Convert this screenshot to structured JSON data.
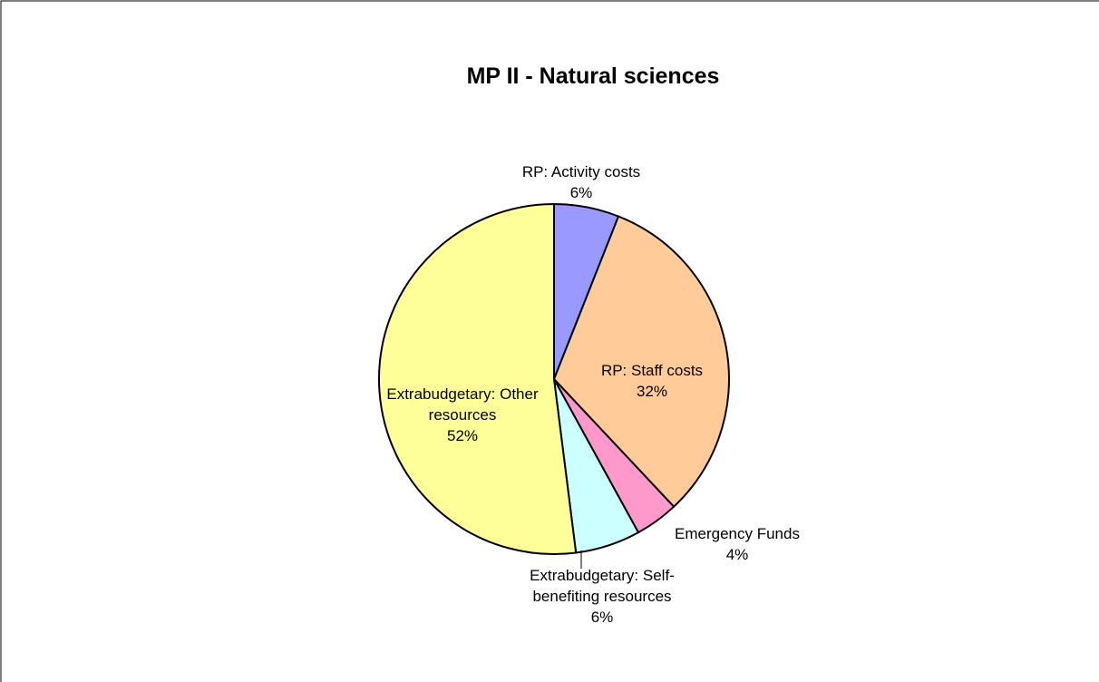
{
  "chart_data": {
    "type": "pie",
    "title": "MP II - Natural sciences",
    "categories": [
      "RP: Activity costs",
      "RP: Staff costs",
      "Emergency Funds",
      "Extrabudgetary: Self-benefiting resources",
      "Extrabudgetary: Other resources"
    ],
    "values": [
      6,
      32,
      4,
      6,
      52
    ],
    "value_labels": [
      "6%",
      "32%",
      "4%",
      "6%",
      "52%"
    ],
    "colors": [
      "#9999ff",
      "#ffcc99",
      "#ff99cc",
      "#ccffff",
      "#ffff99"
    ]
  }
}
